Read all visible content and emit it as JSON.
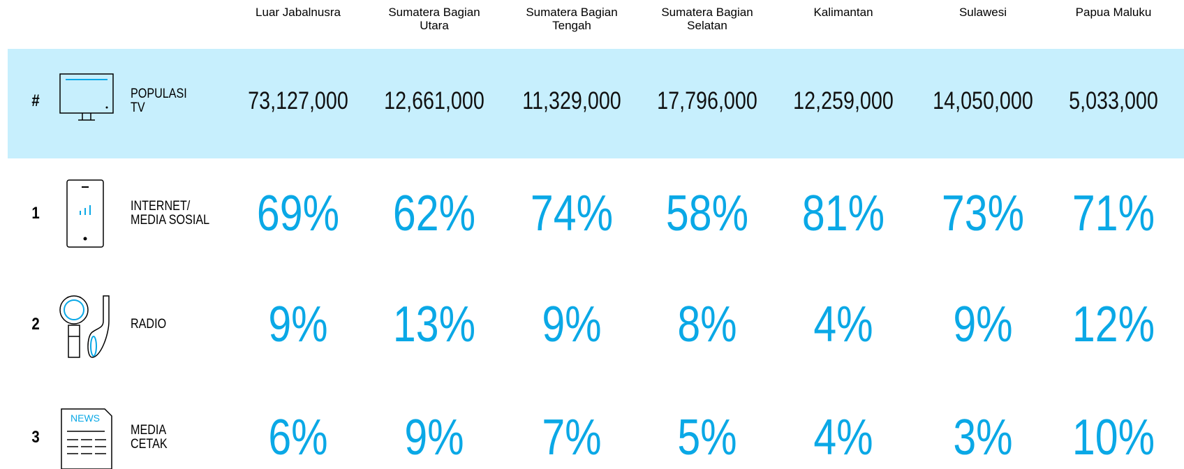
{
  "columns": [
    "Luar Jabalnusra",
    "Sumatera Bagian Utara",
    "Sumatera Bagian Tengah",
    "Sumatera Bagian Selatan",
    "Kalimantan",
    "Sulawesi",
    "Papua Maluku"
  ],
  "rows": [
    {
      "rank": "#",
      "label": [
        "POPULASI",
        "TV"
      ],
      "values": [
        "73,127,000",
        "12,661,000",
        "11,329,000",
        "17,796,000",
        "12,259,000",
        "14,050,000",
        "5,033,000"
      ]
    },
    {
      "rank": "1",
      "label": [
        "INTERNET/",
        "MEDIA SOSIAL"
      ],
      "values": [
        "69%",
        "62%",
        "74%",
        "58%",
        "81%",
        "73%",
        "71%"
      ]
    },
    {
      "rank": "2",
      "label": [
        "RADIO"
      ],
      "values": [
        "9%",
        "13%",
        "9%",
        "8%",
        "4%",
        "9%",
        "12%"
      ]
    },
    {
      "rank": "3",
      "label": [
        "MEDIA",
        "CETAK"
      ],
      "values": [
        "6%",
        "9%",
        "7%",
        "5%",
        "4%",
        "3%",
        "10%"
      ]
    }
  ],
  "icon_text": "NEWS"
}
